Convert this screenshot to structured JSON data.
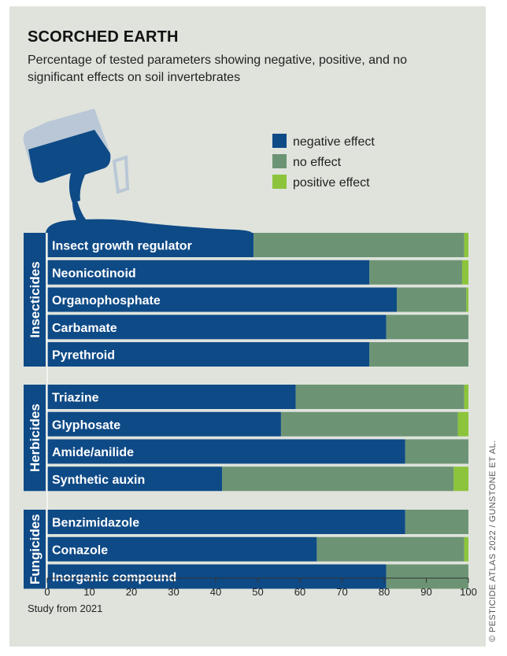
{
  "title": "SCORCHED EARTH",
  "subtitle": "Percentage of tested parameters showing negative, positive, and no significant effects on soil invertebrates",
  "source": "Study from 2021",
  "credit": "© PESTICIDE ATLAS 2022 / GUNSTONE ET AL.",
  "colors": {
    "negative": "#0e4a86",
    "none": "#6c9474",
    "positive": "#8cc43c",
    "panel": "#dfe3dc"
  },
  "chart_data": {
    "type": "bar",
    "orientation": "horizontal",
    "stacked": true,
    "legend": [
      "negative effect",
      "no effect",
      "positive effect"
    ],
    "xlim": [
      0,
      100
    ],
    "xticks": [
      0,
      10,
      20,
      30,
      40,
      50,
      60,
      70,
      80,
      90,
      100
    ],
    "groups": [
      {
        "name": "Insecticides",
        "bars": [
          {
            "category": "Insect growth regulator",
            "negative": 49,
            "none": 50,
            "positive": 1
          },
          {
            "category": "Neonicotinoid",
            "negative": 76.5,
            "none": 22,
            "positive": 1.5
          },
          {
            "category": "Organophosphate",
            "negative": 83,
            "none": 16.5,
            "positive": 0.5
          },
          {
            "category": "Carbamate",
            "negative": 80.5,
            "none": 19.5,
            "positive": 0
          },
          {
            "category": "Pyrethroid",
            "negative": 76.5,
            "none": 23.5,
            "positive": 0
          }
        ]
      },
      {
        "name": "Herbicides",
        "bars": [
          {
            "category": "Triazine",
            "negative": 59,
            "none": 40,
            "positive": 1
          },
          {
            "category": "Glyphosate",
            "negative": 55.5,
            "none": 42,
            "positive": 2.5
          },
          {
            "category": "Amide/anilide",
            "negative": 85,
            "none": 15,
            "positive": 0
          },
          {
            "category": "Synthetic auxin",
            "negative": 41.5,
            "none": 55,
            "positive": 3.5
          }
        ]
      },
      {
        "name": "Fungicides",
        "bars": [
          {
            "category": "Benzimidazole",
            "negative": 85,
            "none": 15,
            "positive": 0
          },
          {
            "category": "Conazole",
            "negative": 64,
            "none": 35,
            "positive": 1
          },
          {
            "category": "Inorganic compound",
            "negative": 80.5,
            "none": 19.5,
            "positive": 0
          }
        ]
      }
    ]
  }
}
